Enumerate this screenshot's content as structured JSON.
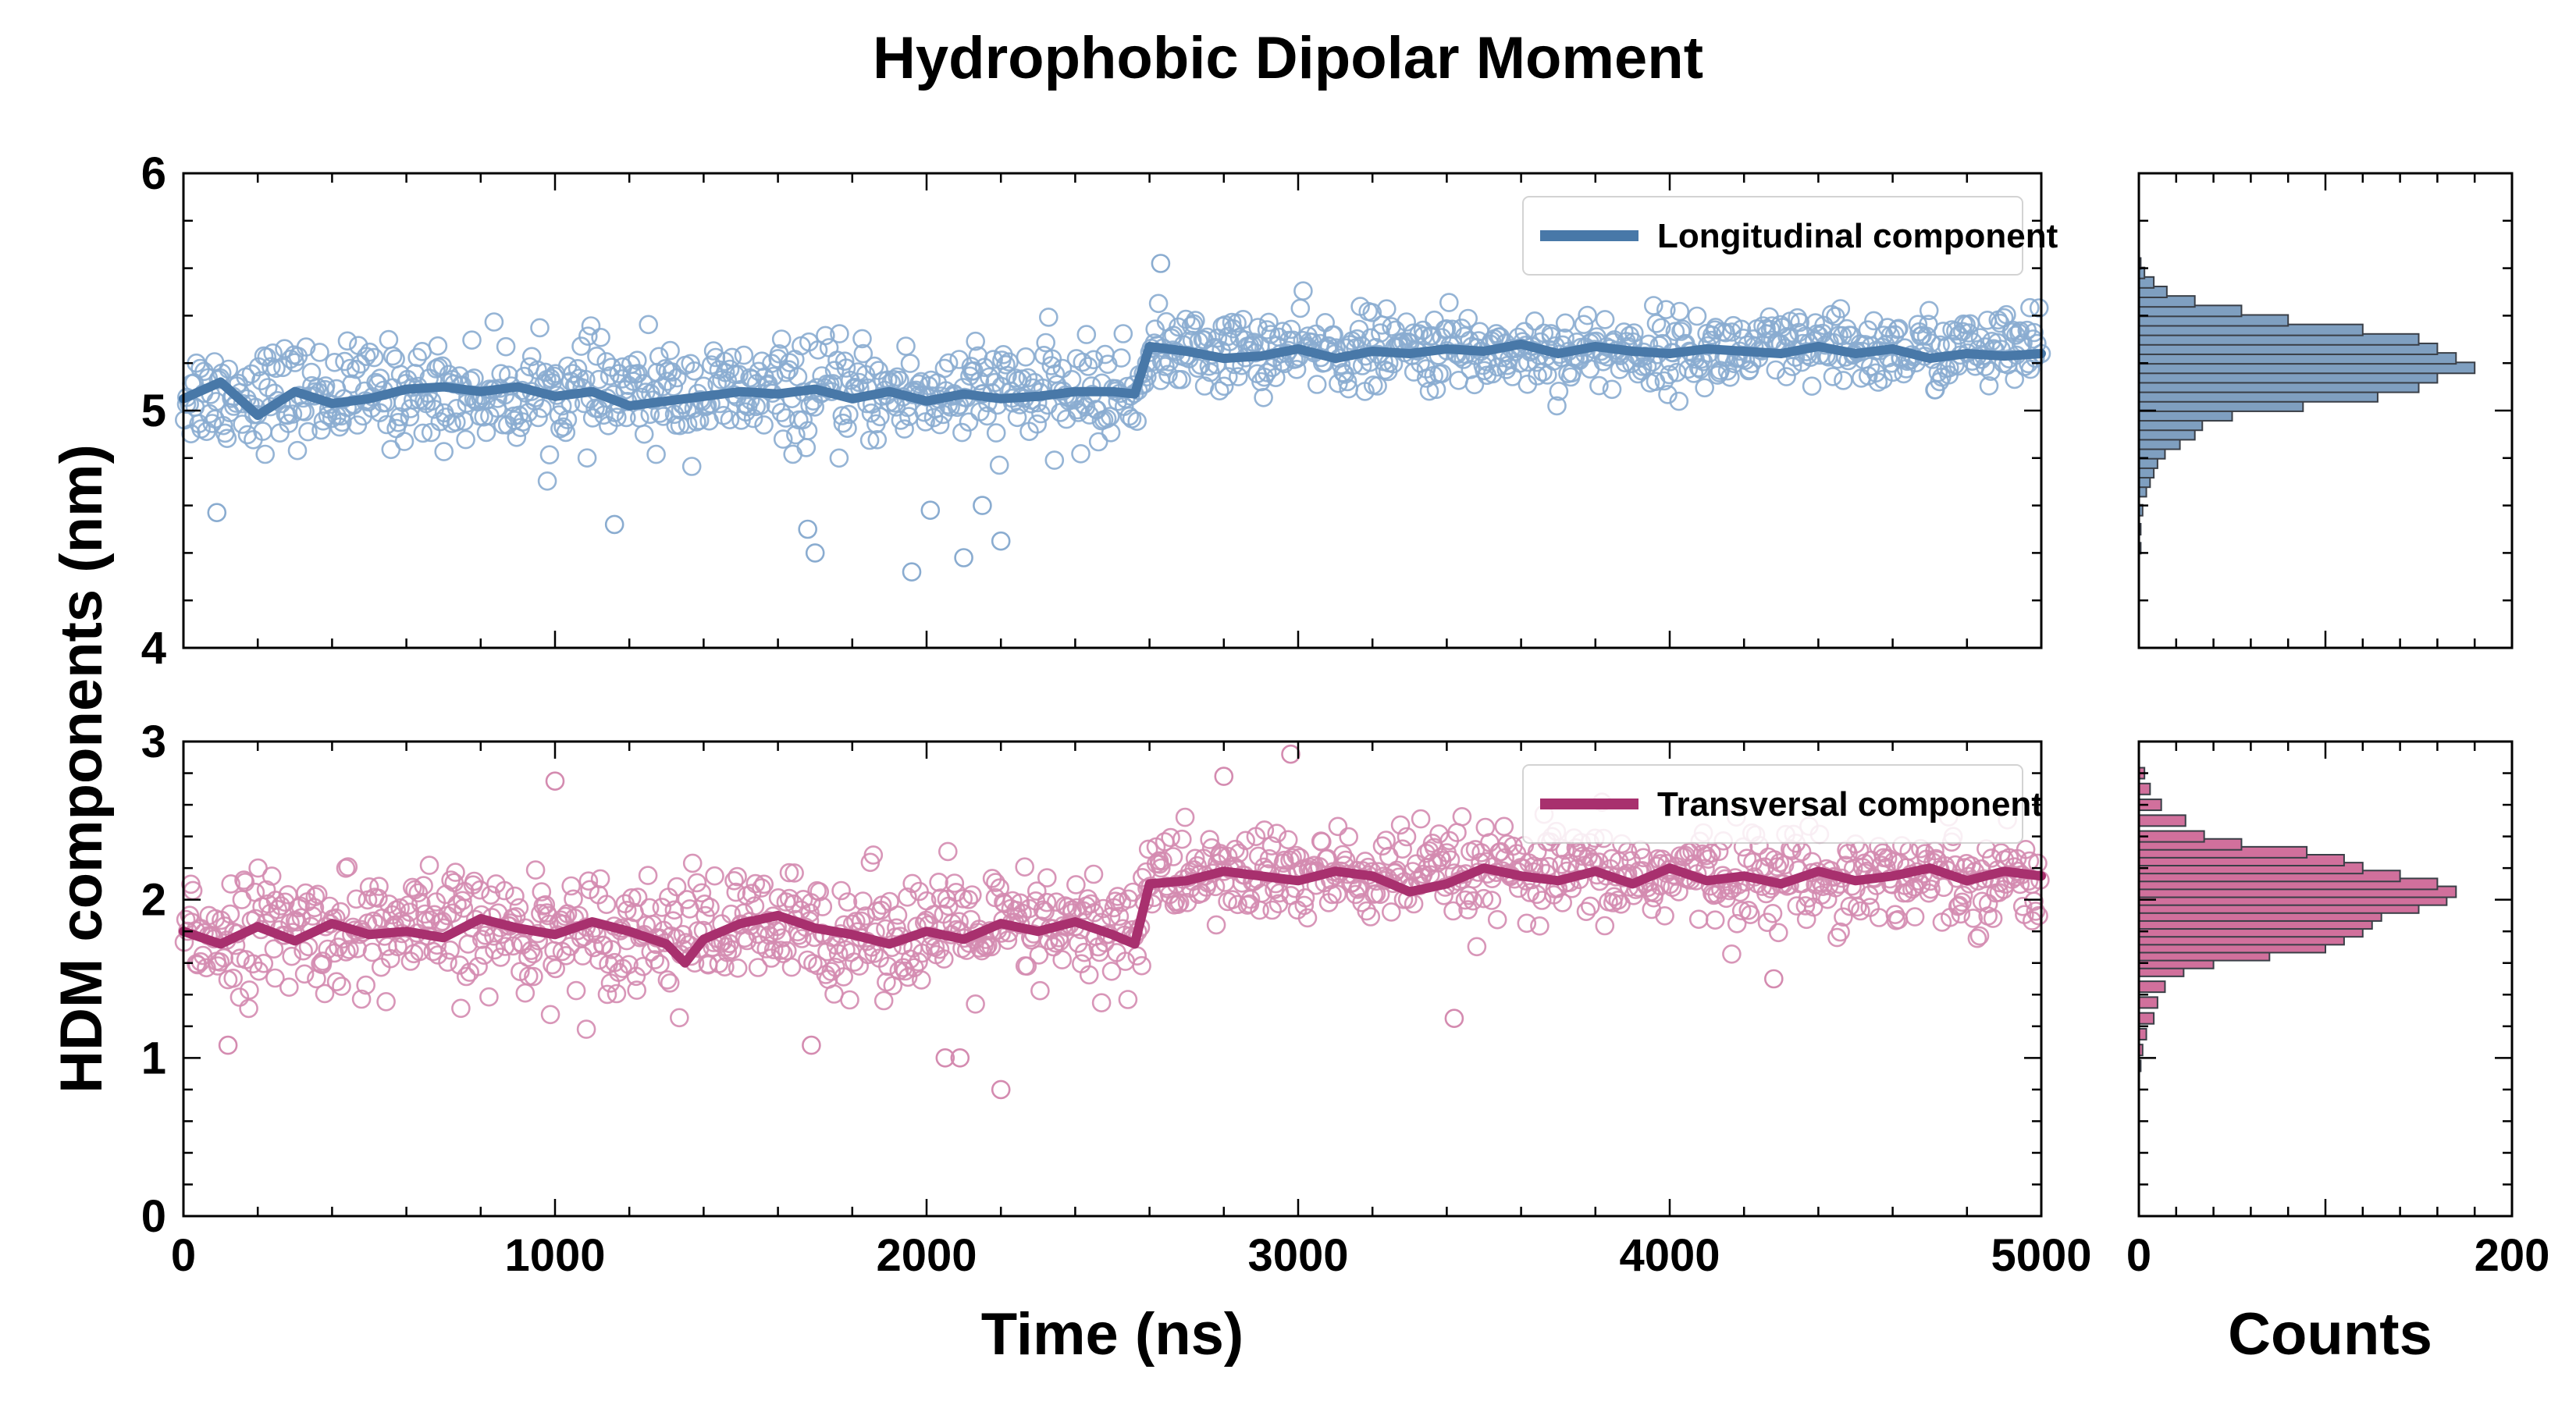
{
  "chart_data": {
    "type": "scatter",
    "title": "Hydrophobic Dipolar Moment",
    "ylabel": "HDM components (nm)",
    "xlabel": "Time (ns)",
    "hist_xlabel": "Counts",
    "panels": [
      {
        "id": "longitudinal",
        "xlim": [
          0,
          5000
        ],
        "ylim": [
          4,
          6
        ],
        "xticks": [
          0,
          1000,
          2000,
          3000,
          4000,
          5000
        ],
        "yticks": [
          4,
          5,
          6
        ],
        "show_xtick_labels": false,
        "series": [
          {
            "name": "Longitudinal component",
            "color": "#4878a8",
            "marker_color": "#8aacd0",
            "scatter_segments": [
              {
                "x_range": [
                  0,
                  2580
                ],
                "mean": 5.07,
                "spread": 0.17
              },
              {
                "x_range": [
                  2580,
                  5000
                ],
                "mean": 5.25,
                "spread": 0.13
              }
            ],
            "running_mean": [
              [
                0,
                5.05
              ],
              [
                100,
                5.12
              ],
              [
                200,
                4.98
              ],
              [
                300,
                5.08
              ],
              [
                400,
                5.03
              ],
              [
                500,
                5.05
              ],
              [
                600,
                5.09
              ],
              [
                700,
                5.1
              ],
              [
                800,
                5.08
              ],
              [
                900,
                5.1
              ],
              [
                1000,
                5.06
              ],
              [
                1100,
                5.08
              ],
              [
                1200,
                5.02
              ],
              [
                1300,
                5.04
              ],
              [
                1400,
                5.06
              ],
              [
                1500,
                5.08
              ],
              [
                1600,
                5.07
              ],
              [
                1700,
                5.09
              ],
              [
                1800,
                5.05
              ],
              [
                1900,
                5.08
              ],
              [
                2000,
                5.04
              ],
              [
                2100,
                5.07
              ],
              [
                2200,
                5.05
              ],
              [
                2300,
                5.06
              ],
              [
                2400,
                5.08
              ],
              [
                2500,
                5.08
              ],
              [
                2560,
                5.07
              ],
              [
                2600,
                5.27
              ],
              [
                2700,
                5.25
              ],
              [
                2800,
                5.22
              ],
              [
                2900,
                5.23
              ],
              [
                3000,
                5.26
              ],
              [
                3100,
                5.22
              ],
              [
                3200,
                5.25
              ],
              [
                3300,
                5.24
              ],
              [
                3400,
                5.26
              ],
              [
                3500,
                5.25
              ],
              [
                3600,
                5.28
              ],
              [
                3700,
                5.24
              ],
              [
                3800,
                5.27
              ],
              [
                3900,
                5.25
              ],
              [
                4000,
                5.24
              ],
              [
                4100,
                5.26
              ],
              [
                4200,
                5.25
              ],
              [
                4300,
                5.24
              ],
              [
                4400,
                5.27
              ],
              [
                4500,
                5.24
              ],
              [
                4600,
                5.26
              ],
              [
                4700,
                5.22
              ],
              [
                4800,
                5.24
              ],
              [
                4900,
                5.23
              ],
              [
                5000,
                5.24
              ]
            ],
            "outliers": [
              [
                1960,
                4.32
              ],
              [
                1700,
                4.4
              ],
              [
                2100,
                4.38
              ],
              [
                2200,
                4.45
              ],
              [
                1680,
                4.5
              ],
              [
                1160,
                4.52
              ],
              [
                2010,
                4.58
              ],
              [
                90,
                4.57
              ],
              [
                2150,
                4.6
              ],
              [
                2630,
                5.62
              ]
            ]
          }
        ],
        "histogram": {
          "color": "#7f9fc0",
          "edge_color": "#3a3f47",
          "bins": [
            [
              4.42,
              1
            ],
            [
              4.5,
              1
            ],
            [
              4.58,
              2
            ],
            [
              4.66,
              4
            ],
            [
              4.7,
              6
            ],
            [
              4.74,
              8
            ],
            [
              4.78,
              10
            ],
            [
              4.82,
              14
            ],
            [
              4.86,
              22
            ],
            [
              4.9,
              30
            ],
            [
              4.94,
              34
            ],
            [
              4.98,
              50
            ],
            [
              5.02,
              88
            ],
            [
              5.06,
              128
            ],
            [
              5.1,
              150
            ],
            [
              5.14,
              160
            ],
            [
              5.18,
              180
            ],
            [
              5.22,
              170
            ],
            [
              5.26,
              160
            ],
            [
              5.3,
              150
            ],
            [
              5.34,
              120
            ],
            [
              5.38,
              80
            ],
            [
              5.42,
              55
            ],
            [
              5.46,
              30
            ],
            [
              5.5,
              15
            ],
            [
              5.54,
              8
            ],
            [
              5.58,
              3
            ],
            [
              5.62,
              1
            ]
          ]
        },
        "hist_xlim": [
          0,
          200
        ],
        "hist_xticks": [
          0,
          200
        ]
      },
      {
        "id": "transversal",
        "xlim": [
          0,
          5000
        ],
        "ylim": [
          0,
          3
        ],
        "xticks": [
          0,
          1000,
          2000,
          3000,
          4000,
          5000
        ],
        "yticks": [
          0,
          1,
          2,
          3
        ],
        "show_xtick_labels": true,
        "series": [
          {
            "name": "Transversal component",
            "color": "#a8306e",
            "marker_color": "#d48bb0",
            "scatter_segments": [
              {
                "x_range": [
                  0,
                  2580
                ],
                "mean": 1.8,
                "spread": 0.3
              },
              {
                "x_range": [
                  2580,
                  5000
                ],
                "mean": 2.15,
                "spread": 0.24
              }
            ],
            "running_mean": [
              [
                0,
                1.8
              ],
              [
                100,
                1.72
              ],
              [
                200,
                1.83
              ],
              [
                300,
                1.74
              ],
              [
                400,
                1.85
              ],
              [
                500,
                1.78
              ],
              [
                600,
                1.8
              ],
              [
                700,
                1.76
              ],
              [
                800,
                1.88
              ],
              [
                900,
                1.82
              ],
              [
                1000,
                1.78
              ],
              [
                1100,
                1.86
              ],
              [
                1200,
                1.8
              ],
              [
                1300,
                1.72
              ],
              [
                1350,
                1.6
              ],
              [
                1400,
                1.75
              ],
              [
                1500,
                1.85
              ],
              [
                1600,
                1.9
              ],
              [
                1700,
                1.82
              ],
              [
                1800,
                1.78
              ],
              [
                1900,
                1.72
              ],
              [
                2000,
                1.8
              ],
              [
                2100,
                1.75
              ],
              [
                2200,
                1.85
              ],
              [
                2300,
                1.8
              ],
              [
                2400,
                1.86
              ],
              [
                2500,
                1.78
              ],
              [
                2560,
                1.72
              ],
              [
                2600,
                2.1
              ],
              [
                2700,
                2.12
              ],
              [
                2800,
                2.18
              ],
              [
                2900,
                2.15
              ],
              [
                3000,
                2.12
              ],
              [
                3100,
                2.18
              ],
              [
                3200,
                2.15
              ],
              [
                3300,
                2.05
              ],
              [
                3400,
                2.1
              ],
              [
                3500,
                2.2
              ],
              [
                3600,
                2.15
              ],
              [
                3700,
                2.12
              ],
              [
                3800,
                2.18
              ],
              [
                3900,
                2.1
              ],
              [
                4000,
                2.2
              ],
              [
                4100,
                2.12
              ],
              [
                4200,
                2.15
              ],
              [
                4300,
                2.1
              ],
              [
                4400,
                2.18
              ],
              [
                4500,
                2.12
              ],
              [
                4600,
                2.15
              ],
              [
                4700,
                2.2
              ],
              [
                4800,
                2.12
              ],
              [
                4900,
                2.18
              ],
              [
                5000,
                2.15
              ]
            ],
            "outliers": [
              [
                2200,
                0.8
              ],
              [
                2050,
                1.0
              ],
              [
                2090,
                1.0
              ],
              [
                1000,
                2.75
              ],
              [
                2980,
                2.92
              ],
              [
                2800,
                2.78
              ],
              [
                3420,
                1.25
              ],
              [
                1690,
                1.08
              ],
              [
                120,
                1.08
              ],
              [
                4280,
                1.5
              ]
            ]
          }
        ],
        "histogram": {
          "color": "#d1709c",
          "edge_color": "#3a3f47",
          "bins": [
            [
              0.95,
              1
            ],
            [
              1.05,
              2
            ],
            [
              1.15,
              4
            ],
            [
              1.25,
              8
            ],
            [
              1.35,
              10
            ],
            [
              1.45,
              14
            ],
            [
              1.55,
              24
            ],
            [
              1.6,
              40
            ],
            [
              1.65,
              70
            ],
            [
              1.7,
              100
            ],
            [
              1.75,
              110
            ],
            [
              1.8,
              120
            ],
            [
              1.85,
              125
            ],
            [
              1.9,
              130
            ],
            [
              1.95,
              150
            ],
            [
              2.0,
              165
            ],
            [
              2.05,
              170
            ],
            [
              2.1,
              160
            ],
            [
              2.15,
              140
            ],
            [
              2.2,
              120
            ],
            [
              2.25,
              110
            ],
            [
              2.3,
              90
            ],
            [
              2.35,
              55
            ],
            [
              2.4,
              35
            ],
            [
              2.5,
              25
            ],
            [
              2.6,
              12
            ],
            [
              2.7,
              6
            ],
            [
              2.8,
              3
            ]
          ]
        },
        "hist_xlim": [
          0,
          200
        ],
        "hist_xticks": [
          0,
          200
        ]
      }
    ]
  }
}
